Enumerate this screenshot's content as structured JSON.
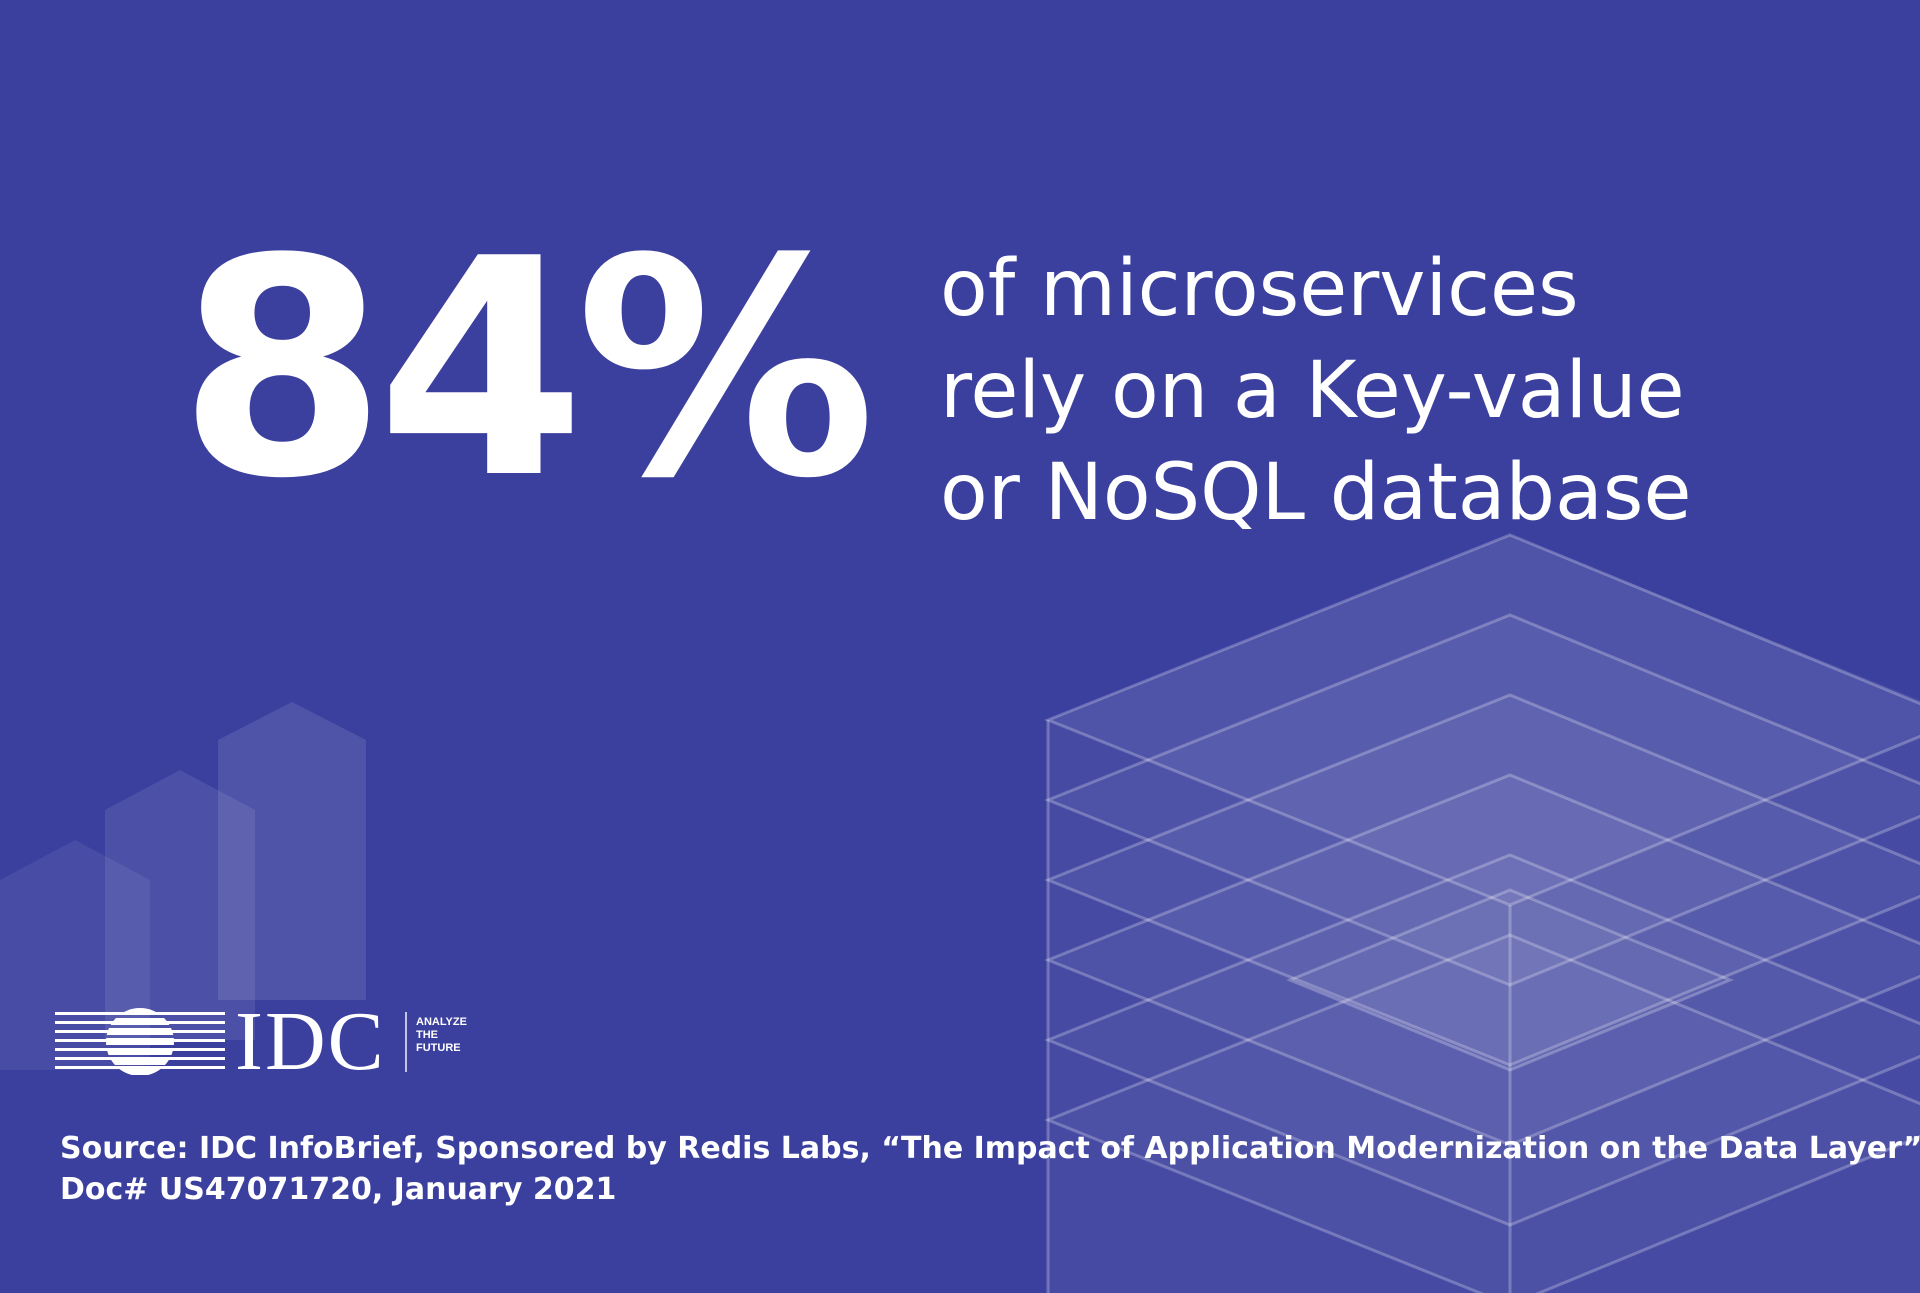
{
  "colors": {
    "background": "#3b3f9e",
    "text": "#ffffff"
  },
  "stat": {
    "value": "84%",
    "lines": [
      "of microservices",
      "rely on a Key-value",
      "or NoSQL database"
    ]
  },
  "logo": {
    "name": "IDC",
    "tagline_lines": [
      "ANALYZE",
      "THE",
      "FUTURE"
    ]
  },
  "source": {
    "line1": "Source: IDC InfoBrief, Sponsored by Redis Labs, “The Impact of Application Modernization on the Data Layer”,",
    "line2": "Doc# US47071720, January 2021"
  }
}
